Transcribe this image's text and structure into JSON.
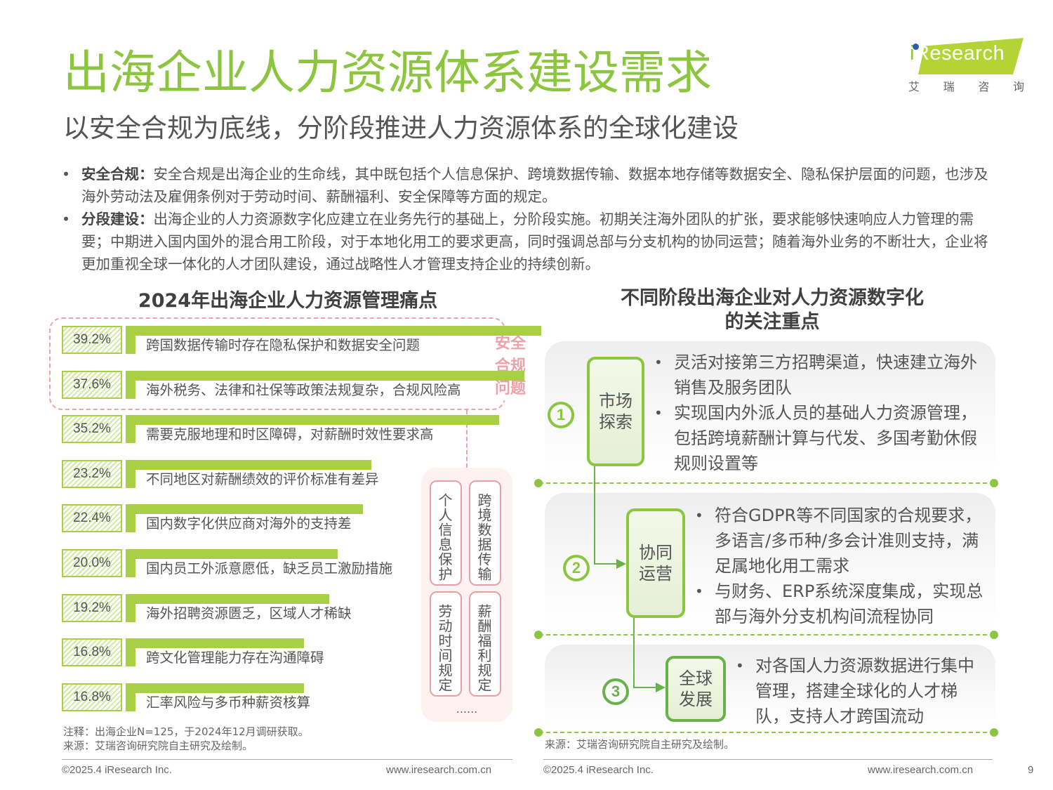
{
  "header": {
    "title": "出海企业人力资源体系建设需求",
    "subtitle": "以安全合规为底线，分阶段推进人力资源体系的全球化建设",
    "logo": {
      "brand_i": "i",
      "brand_rest": "Research",
      "cn": [
        "艾",
        "瑞",
        "咨",
        "询"
      ]
    }
  },
  "bullets": [
    {
      "label": "安全合规：",
      "text": "安全合规是出海企业的生命线，其中既包括个人信息保护、跨境数据传输、数据本地存储等数据安全、隐私保护层面的问题，也涉及海外劳动法及雇佣条例对于劳动时间、薪酬福利、安全保障等方面的规定。"
    },
    {
      "label": "分段建设：",
      "text": "出海企业的人力资源数字化应建立在业务先行的基础上，分阶段实施。初期关注海外团队的扩张，要求能够快速响应人力管理的需要；中期进入国内国外的混合用工阶段，对于本地化用工的要求更高，同时强调总部与分支机构的协同运营；随着海外业务的不断壮大，企业将更加重视全球一体化的人才团队建设，通过战略性人才管理支持企业的持续创新。"
    }
  ],
  "left_panel": {
    "title": "2024年出海企业人力资源管理痛点",
    "safety_group_label": [
      "安全",
      "合规",
      "问题"
    ],
    "tags": [
      "个人信息保护",
      "跨境数据传输",
      "劳动时间规定",
      "薪酬福利规定"
    ],
    "tags_more": "......",
    "note": "注释：出海企业N=125，于2024年12月调研获取。",
    "source": "来源：艾瑞咨询研究院自主研究及绘制。",
    "copyright": "©2025.4 iResearch Inc.",
    "website": "www.iresearch.com.cn"
  },
  "chart_data": {
    "type": "bar",
    "orientation": "horizontal",
    "title": "2024年出海企业人力资源管理痛点",
    "categories": [
      "跨国数据传输时存在隐私保护和数据安全问题",
      "海外税务、法律和社保等政策法规复杂，合规风险高",
      "需要克服地理和时区障碍，对薪酬时效性要求高",
      "不同地区对薪酬绩效的评价标准有差异",
      "国内数字化供应商对海外的支持差",
      "国内员工外派意愿低，缺乏员工激励措施",
      "海外招聘资源匮乏，区域人才稀缺",
      "跨文化管理能力存在沟通障碍",
      "汇率风险与多币种薪资核算"
    ],
    "values": [
      39.2,
      37.6,
      35.2,
      23.2,
      22.4,
      20.0,
      19.2,
      16.8,
      16.8
    ],
    "value_labels": [
      "39.2%",
      "37.6%",
      "35.2%",
      "23.2%",
      "22.4%",
      "20.0%",
      "19.2%",
      "16.8%",
      "16.8%"
    ],
    "unit": "%",
    "highlight_group": {
      "label": "安全合规问题",
      "indices": [
        0,
        1
      ]
    },
    "note": "出海企业N=125，于2024年12月调研获取。",
    "bar_color": "#a8cf45"
  },
  "right_panel": {
    "title_line1": "不同阶段出海企业对人力资源数字化",
    "title_line2": "的关注重点",
    "stages": [
      {
        "num": "1",
        "name_line1": "市场",
        "name_line2": "探索",
        "points": [
          "灵活对接第三方招聘渠道，快速建立海外销售及服务团队",
          "实现国内外派人员的基础人力资源管理，包括跨境薪酬计算与代发、多国考勤休假规则设置等"
        ]
      },
      {
        "num": "2",
        "name_line1": "协同",
        "name_line2": "运营",
        "points": [
          "符合GDPR等不同国家的合规要求，多语言/多币种/多会计准则支持，满足属地化用工需求",
          "与财务、ERP系统深度集成，实现总部与海外分支机构间流程协同"
        ]
      },
      {
        "num": "3",
        "name_line1": "全球",
        "name_line2": "发展",
        "points": [
          "对各国人力资源数据进行集中管理，搭建全球化的人才梯队，支持人才跨国流动"
        ]
      }
    ],
    "source": "来源：艾瑞咨询研究院自主研究及绘制。",
    "copyright": "©2025.4 iResearch Inc.",
    "website": "www.iresearch.com.cn",
    "page_number": "9"
  },
  "colors": {
    "title_green": "#8cc63f",
    "bar_green": "#a8cf45",
    "dark_green": "#6ab04c",
    "pink": "#f0a0a8",
    "text_gray": "#555555"
  }
}
